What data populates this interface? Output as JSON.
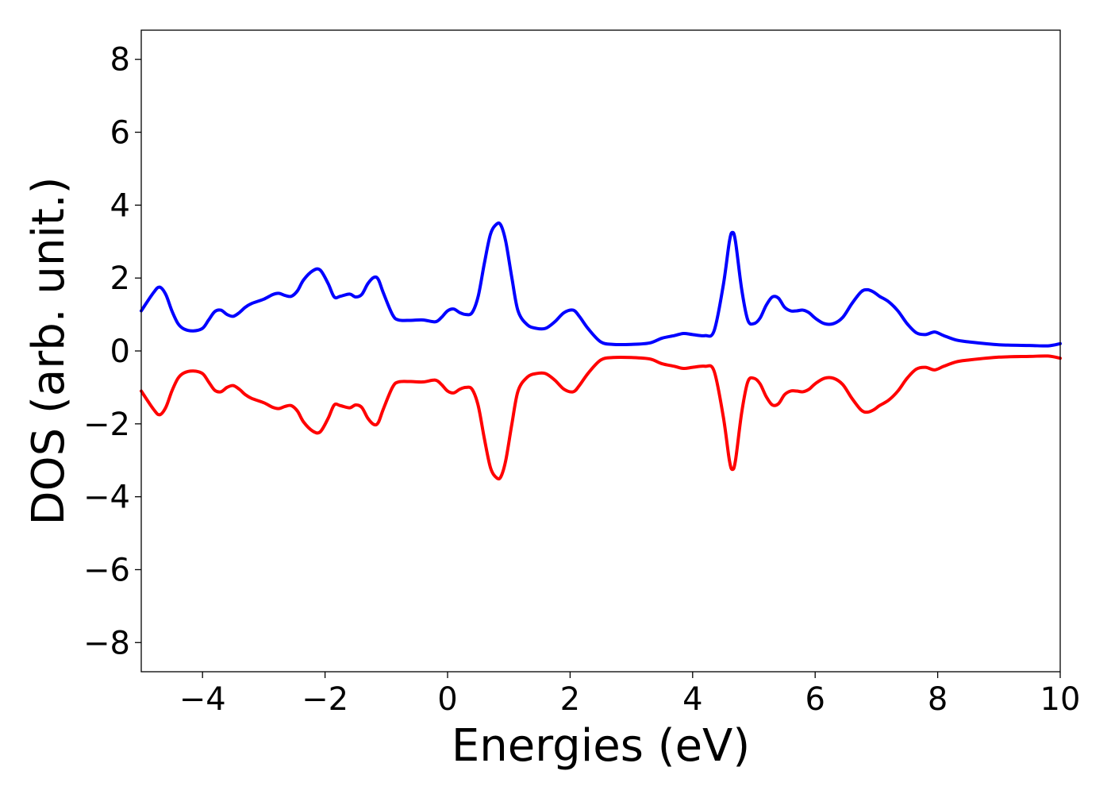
{
  "chart_data": {
    "type": "line",
    "title": "",
    "xlabel": "Energies (eV)",
    "ylabel": "DOS (arb. unit.)",
    "xlim": [
      -5,
      10
    ],
    "ylim": [
      -8.8,
      8.8
    ],
    "grid": false,
    "legend": "none",
    "x_ticks": [
      -4,
      -2,
      0,
      2,
      4,
      6,
      8,
      10
    ],
    "x_tick_labels": [
      "−4",
      "−2",
      "0",
      "2",
      "4",
      "6",
      "8",
      "10"
    ],
    "y_ticks": [
      8,
      6,
      4,
      2,
      0,
      -2,
      -4,
      -6,
      -8
    ],
    "y_tick_labels": [
      "8",
      "6",
      "4",
      "2",
      "0",
      "−2",
      "−4",
      "−6",
      "−8"
    ],
    "series": [
      {
        "color": "#0000ff",
        "x": [
          -5.0,
          -4.8,
          -4.7,
          -4.6,
          -4.5,
          -4.4,
          -4.3,
          -4.15,
          -4.0,
          -3.9,
          -3.8,
          -3.7,
          -3.6,
          -3.5,
          -3.4,
          -3.3,
          -3.2,
          -3.0,
          -2.85,
          -2.75,
          -2.65,
          -2.55,
          -2.45,
          -2.35,
          -2.2,
          -2.08,
          -1.95,
          -1.85,
          -1.75,
          -1.6,
          -1.5,
          -1.4,
          -1.3,
          -1.2,
          -1.13,
          -1.05,
          -0.9,
          -0.8,
          -0.6,
          -0.4,
          -0.2,
          -0.1,
          0.0,
          0.1,
          0.2,
          0.3,
          0.4,
          0.5,
          0.6,
          0.7,
          0.8,
          0.87,
          0.95,
          1.05,
          1.15,
          1.3,
          1.45,
          1.6,
          1.75,
          1.9,
          2.05,
          2.15,
          2.3,
          2.5,
          2.7,
          3.0,
          3.3,
          3.5,
          3.7,
          3.85,
          4.0,
          4.2,
          4.35,
          4.5,
          4.6,
          4.65,
          4.7,
          4.8,
          4.9,
          5.0,
          5.1,
          5.2,
          5.3,
          5.4,
          5.5,
          5.6,
          5.7,
          5.8,
          5.9,
          6.0,
          6.15,
          6.3,
          6.45,
          6.6,
          6.75,
          6.85,
          6.95,
          7.05,
          7.2,
          7.35,
          7.5,
          7.65,
          7.8,
          7.95,
          8.1,
          8.3,
          8.5,
          9.0,
          9.5,
          9.8,
          10.0
        ],
        "y": [
          1.1,
          1.6,
          1.75,
          1.55,
          1.1,
          0.75,
          0.6,
          0.55,
          0.62,
          0.85,
          1.08,
          1.12,
          1.0,
          0.95,
          1.05,
          1.2,
          1.3,
          1.42,
          1.55,
          1.58,
          1.52,
          1.5,
          1.65,
          1.95,
          2.2,
          2.22,
          1.85,
          1.48,
          1.5,
          1.56,
          1.48,
          1.55,
          1.85,
          2.02,
          1.96,
          1.6,
          1.0,
          0.85,
          0.84,
          0.85,
          0.8,
          0.92,
          1.1,
          1.15,
          1.05,
          1.0,
          1.05,
          1.5,
          2.4,
          3.2,
          3.48,
          3.45,
          3.0,
          2.0,
          1.1,
          0.72,
          0.62,
          0.62,
          0.8,
          1.05,
          1.12,
          0.95,
          0.6,
          0.25,
          0.18,
          0.18,
          0.22,
          0.35,
          0.42,
          0.48,
          0.45,
          0.42,
          0.55,
          1.8,
          3.0,
          3.25,
          3.0,
          1.7,
          0.85,
          0.75,
          0.9,
          1.25,
          1.48,
          1.45,
          1.2,
          1.1,
          1.1,
          1.12,
          1.05,
          0.9,
          0.75,
          0.75,
          0.92,
          1.3,
          1.62,
          1.68,
          1.62,
          1.5,
          1.35,
          1.1,
          0.75,
          0.5,
          0.45,
          0.52,
          0.42,
          0.3,
          0.25,
          0.17,
          0.15,
          0.14,
          0.2
        ]
      },
      {
        "color": "#ff0000",
        "x": [
          -5.0,
          -4.8,
          -4.7,
          -4.6,
          -4.5,
          -4.4,
          -4.3,
          -4.15,
          -4.0,
          -3.9,
          -3.8,
          -3.7,
          -3.6,
          -3.5,
          -3.4,
          -3.3,
          -3.2,
          -3.0,
          -2.85,
          -2.75,
          -2.65,
          -2.55,
          -2.45,
          -2.35,
          -2.2,
          -2.08,
          -1.95,
          -1.85,
          -1.75,
          -1.6,
          -1.5,
          -1.4,
          -1.3,
          -1.2,
          -1.13,
          -1.05,
          -0.9,
          -0.8,
          -0.6,
          -0.4,
          -0.2,
          -0.1,
          0.0,
          0.1,
          0.2,
          0.3,
          0.4,
          0.5,
          0.6,
          0.7,
          0.8,
          0.87,
          0.95,
          1.05,
          1.15,
          1.3,
          1.45,
          1.6,
          1.75,
          1.9,
          2.05,
          2.15,
          2.3,
          2.5,
          2.7,
          3.0,
          3.3,
          3.5,
          3.7,
          3.85,
          4.0,
          4.2,
          4.35,
          4.5,
          4.6,
          4.65,
          4.7,
          4.8,
          4.9,
          5.0,
          5.1,
          5.2,
          5.3,
          5.4,
          5.5,
          5.6,
          5.7,
          5.8,
          5.9,
          6.0,
          6.15,
          6.3,
          6.45,
          6.6,
          6.75,
          6.85,
          6.95,
          7.05,
          7.2,
          7.35,
          7.5,
          7.65,
          7.8,
          7.95,
          8.1,
          8.3,
          8.5,
          9.0,
          9.5,
          9.8,
          10.0
        ],
        "y": [
          -1.1,
          -1.6,
          -1.75,
          -1.55,
          -1.1,
          -0.75,
          -0.6,
          -0.55,
          -0.62,
          -0.85,
          -1.08,
          -1.12,
          -1.0,
          -0.95,
          -1.05,
          -1.2,
          -1.3,
          -1.42,
          -1.55,
          -1.58,
          -1.52,
          -1.5,
          -1.65,
          -1.95,
          -2.2,
          -2.22,
          -1.85,
          -1.48,
          -1.5,
          -1.56,
          -1.48,
          -1.55,
          -1.85,
          -2.02,
          -1.96,
          -1.6,
          -1.0,
          -0.85,
          -0.84,
          -0.85,
          -0.8,
          -0.92,
          -1.1,
          -1.15,
          -1.05,
          -1.0,
          -1.05,
          -1.5,
          -2.4,
          -3.2,
          -3.48,
          -3.45,
          -3.0,
          -2.0,
          -1.1,
          -0.72,
          -0.62,
          -0.62,
          -0.8,
          -1.05,
          -1.12,
          -0.95,
          -0.6,
          -0.25,
          -0.18,
          -0.18,
          -0.22,
          -0.35,
          -0.42,
          -0.48,
          -0.45,
          -0.42,
          -0.55,
          -1.8,
          -3.0,
          -3.25,
          -3.0,
          -1.7,
          -0.85,
          -0.75,
          -0.9,
          -1.25,
          -1.48,
          -1.45,
          -1.2,
          -1.1,
          -1.1,
          -1.12,
          -1.05,
          -0.9,
          -0.75,
          -0.75,
          -0.92,
          -1.3,
          -1.62,
          -1.68,
          -1.62,
          -1.5,
          -1.35,
          -1.1,
          -0.75,
          -0.5,
          -0.45,
          -0.52,
          -0.42,
          -0.3,
          -0.25,
          -0.17,
          -0.15,
          -0.14,
          -0.2
        ]
      }
    ]
  }
}
